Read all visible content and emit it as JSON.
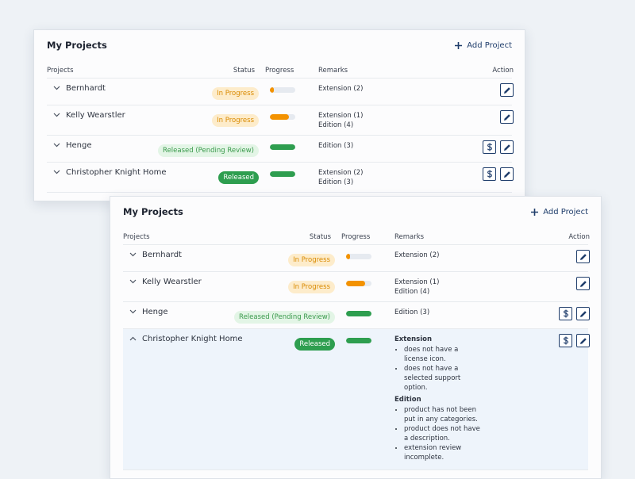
{
  "panels": [
    {
      "title": "My Projects",
      "add_button": "Add Project",
      "columns": [
        "Projects",
        "Status",
        "Progress",
        "Remarks",
        "Action"
      ],
      "rows": [
        {
          "name": "Bernhardt",
          "status": "In Progress",
          "status_color": "#d98a00",
          "status_fill": "#fdeccb",
          "progress": 15,
          "progress_color": "#f39200",
          "remarks": [
            "Extension (2)"
          ],
          "actions": [
            "edit"
          ],
          "expanded": false
        },
        {
          "name": "Kelly Wearstler",
          "status": "In Progress",
          "status_color": "#d98a00",
          "status_fill": "#fdeccb",
          "progress": 75,
          "progress_color": "#f39200",
          "remarks": [
            "Extension (1)",
            "Edition (4)"
          ],
          "actions": [
            "edit"
          ],
          "expanded": false
        },
        {
          "name": "Henge",
          "status": "Released (Pending Review)",
          "status_color": "#3a9a4c",
          "status_fill": "#e3f5e6",
          "progress": 100,
          "progress_color": "#2e9e4f",
          "remarks": [
            "Edition (3)"
          ],
          "actions": [
            "pricing",
            "edit"
          ],
          "expanded": false
        },
        {
          "name": "Christopher Knight Home",
          "status": "Released",
          "status_color": "#ffffff",
          "status_fill": "#2e9e4f",
          "progress": 100,
          "progress_color": "#2e9e4f",
          "remarks": [
            "Extension (2)",
            "Edition (3)"
          ],
          "actions": [
            "pricing",
            "edit"
          ],
          "expanded": false
        }
      ]
    },
    {
      "title": "My Projects",
      "add_button": "Add Project",
      "columns": [
        "Projects",
        "Status",
        "Progress",
        "Remarks",
        "Action"
      ],
      "rows": [
        {
          "name": "Bernhardt",
          "status": "In Progress",
          "status_color": "#d98a00",
          "status_fill": "#fdeccb",
          "progress": 15,
          "progress_color": "#f39200",
          "remarks": [
            "Extension (2)"
          ],
          "actions": [
            "edit"
          ],
          "expanded": false
        },
        {
          "name": "Kelly Wearstler",
          "status": "In Progress",
          "status_color": "#d98a00",
          "status_fill": "#fdeccb",
          "progress": 75,
          "progress_color": "#f39200",
          "remarks": [
            "Extension (1)",
            "Edition (4)"
          ],
          "actions": [
            "edit"
          ],
          "expanded": false
        },
        {
          "name": "Henge",
          "status": "Released (Pending Review)",
          "status_color": "#3a9a4c",
          "status_fill": "#e3f5e6",
          "progress": 100,
          "progress_color": "#2e9e4f",
          "remarks": [
            "Edition (3)"
          ],
          "actions": [
            "pricing",
            "edit"
          ],
          "expanded": false
        },
        {
          "name": "Christopher Knight Home",
          "status": "Released",
          "status_color": "#ffffff",
          "status_fill": "#2e9e4f",
          "progress": 100,
          "progress_color": "#2e9e4f",
          "remarks": [],
          "actions": [
            "pricing",
            "edit"
          ],
          "expanded": true,
          "details": [
            {
              "heading": "Extension",
              "items": [
                "does not have a license icon.",
                "does not have a selected support option."
              ]
            },
            {
              "heading": "Edition",
              "items": [
                "product has not been put in any categories.",
                "product does not have a description.",
                "extension review incomplete."
              ]
            }
          ]
        }
      ]
    }
  ]
}
